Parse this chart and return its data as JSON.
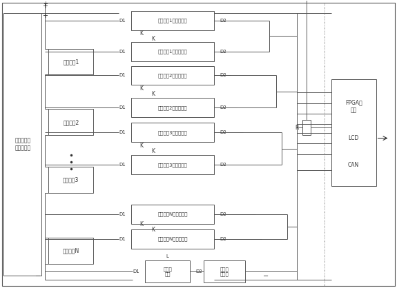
{
  "bg_color": "#ffffff",
  "lc": "#555555",
  "tc": "#333333",
  "fig_width": 5.75,
  "fig_height": 4.18,
  "dpi": 100,
  "left_module_label": "铅酸电池电\n压检测模块",
  "fpga_label": "FPGA控\n制器",
  "lcd_label": "LCD",
  "can_label": "CAN",
  "r_label": "R",
  "dc_label": "直流接\n触器",
  "fuse_label": "自恢复\n保险丝",
  "bat_labels": [
    "铅酸电池1",
    "铅酸电池2",
    "铅酸电池3",
    "铅酸电池N"
  ],
  "cont_labels": [
    "铅酸电池1第一接触器",
    "铅酸电池1第二接触器",
    "铅酸电池2第一接触器",
    "铅酸电池2第二接触器",
    "铅酸电池3第一接触器",
    "铅酸电池3第二接触器",
    "铅酸电池N第一接触器",
    "铅酸电池N第二接触器"
  ]
}
